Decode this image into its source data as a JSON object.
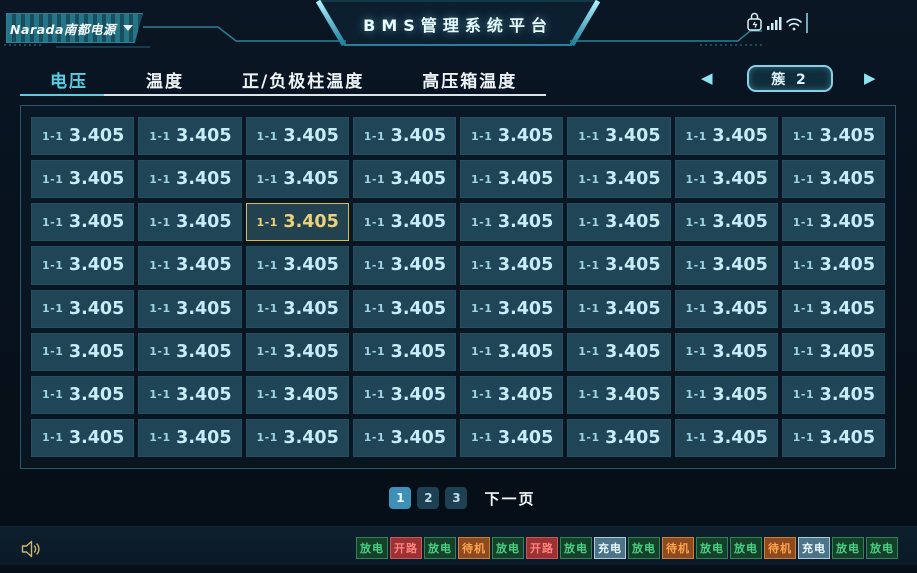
{
  "header": {
    "logo_text": "Narada南都电源",
    "title": "BMS管理系统平台",
    "status_icons": [
      "lock-icon",
      "signal-icon",
      "wifi-icon"
    ]
  },
  "tabs": [
    {
      "name": "voltage",
      "label": "电压",
      "active": true
    },
    {
      "name": "temperature",
      "label": "温度",
      "active": false
    },
    {
      "name": "pole-temperature",
      "label": "正/负极柱温度",
      "active": false
    },
    {
      "name": "hv-box-temperature",
      "label": "高压箱温度",
      "active": false
    }
  ],
  "cluster": {
    "prev": "◀",
    "label": "簇 2",
    "next": "▶"
  },
  "grid": {
    "cell_label": "1-1",
    "highlight": {
      "row": 2,
      "col": 2
    },
    "rows": [
      [
        "3.405",
        "3.405",
        "3.405",
        "3.405",
        "3.405",
        "3.405",
        "3.405",
        "3.405"
      ],
      [
        "3.405",
        "3.405",
        "3.405",
        "3.405",
        "3.405",
        "3.405",
        "3.405",
        "3.405"
      ],
      [
        "3.405",
        "3.405",
        "3.405",
        "3.405",
        "3.405",
        "3.405",
        "3.405",
        "3.405"
      ],
      [
        "3.405",
        "3.405",
        "3.405",
        "3.405",
        "3.405",
        "3.405",
        "3.405",
        "3.405"
      ],
      [
        "3.405",
        "3.405",
        "3.405",
        "3.405",
        "3.405",
        "3.405",
        "3.405",
        "3.405"
      ],
      [
        "3.405",
        "3.405",
        "3.405",
        "3.405",
        "3.405",
        "3.405",
        "3.405",
        "3.405"
      ],
      [
        "3.405",
        "3.405",
        "3.405",
        "3.405",
        "3.405",
        "3.405",
        "3.405",
        "3.405"
      ],
      [
        "3.405",
        "3.405",
        "3.405",
        "3.405",
        "3.405",
        "3.405",
        "3.405",
        "3.405"
      ]
    ]
  },
  "pagination": {
    "pages": [
      "1",
      "2",
      "3"
    ],
    "active": "1",
    "next_label": "下一页"
  },
  "footer": {
    "statuses": [
      {
        "label": "放电",
        "type": "discharge"
      },
      {
        "label": "开路",
        "type": "open"
      },
      {
        "label": "放电",
        "type": "discharge"
      },
      {
        "label": "待机",
        "type": "standby"
      },
      {
        "label": "放电",
        "type": "discharge"
      },
      {
        "label": "开路",
        "type": "open"
      },
      {
        "label": "放电",
        "type": "discharge"
      },
      {
        "label": "充电",
        "type": "charge"
      },
      {
        "label": "放电",
        "type": "discharge"
      },
      {
        "label": "待机",
        "type": "standby"
      },
      {
        "label": "放电",
        "type": "discharge"
      },
      {
        "label": "放电",
        "type": "discharge"
      },
      {
        "label": "待机",
        "type": "standby"
      },
      {
        "label": "充电",
        "type": "charge"
      },
      {
        "label": "放电",
        "type": "discharge"
      },
      {
        "label": "放电",
        "type": "discharge"
      }
    ]
  },
  "colors": {
    "accent": "#56cfe4",
    "highlight_border": "#d9ba50",
    "highlight_text": "#ecd27d",
    "page_active_bg": "#3f90b6",
    "status": {
      "discharge": {
        "bg": "#15402a",
        "border": "#2f8455",
        "text": "#4ad183"
      },
      "open": {
        "bg": "#9c3134",
        "border": "#c65b55",
        "text": "#ff837a"
      },
      "standby": {
        "bg": "#8d4a1f",
        "border": "#c9803b",
        "text": "#ffa54f"
      },
      "charge": {
        "bg": "#4d7389",
        "border": "#a9cddc",
        "text": "#e9fbff"
      }
    }
  }
}
